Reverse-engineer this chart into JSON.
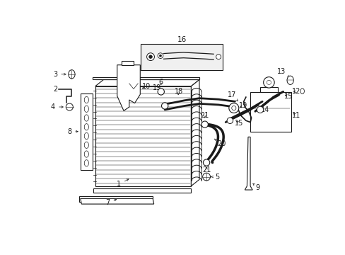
{
  "bg_color": "#ffffff",
  "line_color": "#1a1a1a",
  "fig_w": 4.89,
  "fig_h": 3.6,
  "dpi": 100,
  "xlim": [
    0,
    489
  ],
  "ylim": [
    0,
    360
  ]
}
